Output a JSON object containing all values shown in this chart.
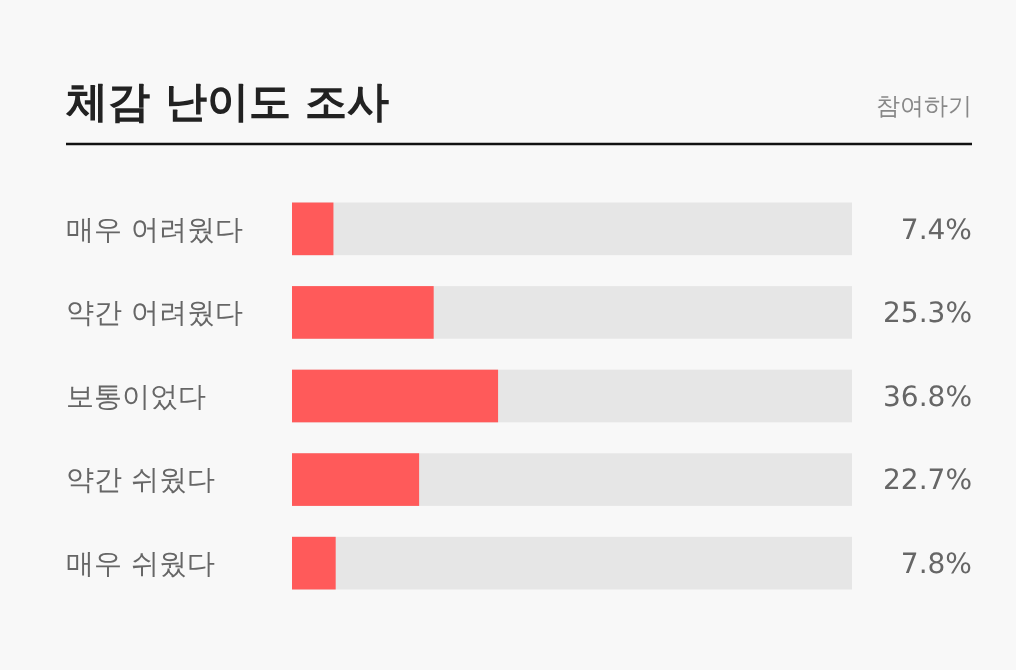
{
  "chart_data": {
    "type": "bar",
    "orientation": "horizontal",
    "title": "체감 난이도 조사",
    "annotations": [
      "참여하기"
    ],
    "categories": [
      "매우 어려웠다",
      "약간 어려웠다",
      "보통이었다",
      "약간 쉬웠다",
      "매우 쉬웠다"
    ],
    "values": [
      7.4,
      25.3,
      36.8,
      22.7,
      7.8
    ],
    "value_labels": [
      "7.4%",
      "25.3%",
      "36.8%",
      "22.7%",
      "7.8%"
    ],
    "color": "#ff5a5a",
    "xlim": [
      0,
      100
    ],
    "tick_labels": "y"
  }
}
